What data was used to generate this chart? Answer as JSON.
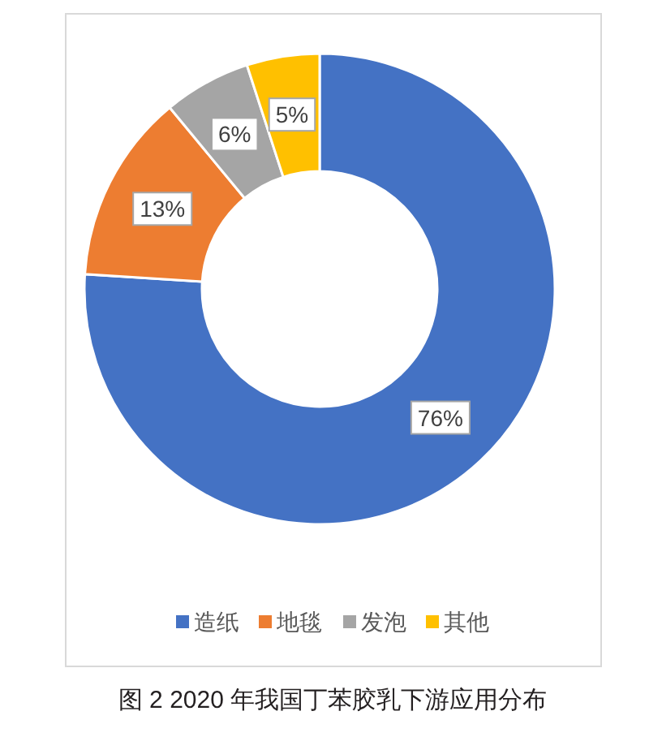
{
  "chart_data": {
    "type": "donut",
    "categories": [
      "造纸",
      "地毯",
      "发泡",
      "其他"
    ],
    "values": [
      76,
      13,
      6,
      5
    ],
    "colors": [
      "#4472c4",
      "#ed7d31",
      "#a5a5a5",
      "#ffc000"
    ],
    "value_labels": [
      "76%",
      "13%",
      "6%",
      "5%"
    ],
    "legend": "bottom",
    "annotations": [
      "图 2  2020 年我国丁苯胶乳下游应用分布"
    ]
  }
}
